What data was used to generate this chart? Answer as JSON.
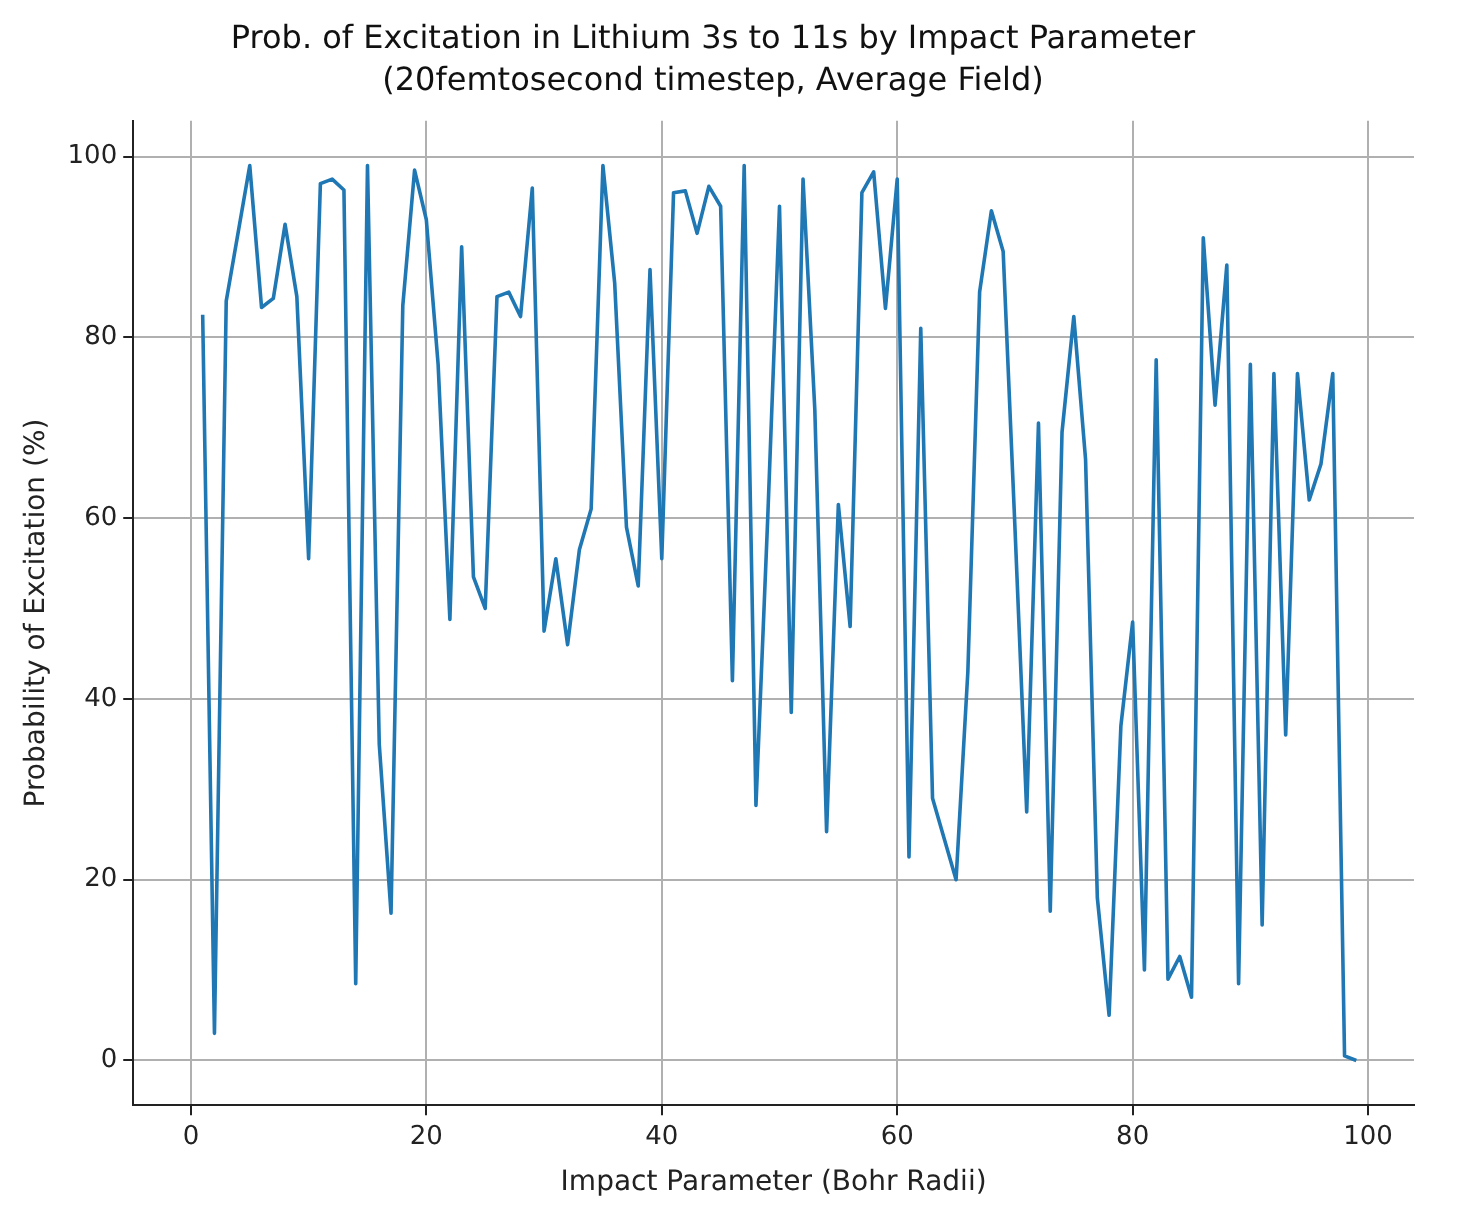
{
  "chart_data": {
    "type": "line",
    "title": "Prob. of Excitation in Lithium 3s to 11s by Impact Parameter",
    "subtitle": "(20femtosecond timestep, Average Field)",
    "xlabel": "Impact Parameter (Bohr Radii)",
    "ylabel": "Probability of Excitation (%)",
    "x": [
      1,
      2,
      3,
      4,
      5,
      6,
      7,
      8,
      9,
      10,
      11,
      12,
      13,
      14,
      15,
      16,
      17,
      18,
      19,
      20,
      21,
      22,
      23,
      24,
      25,
      26,
      27,
      28,
      29,
      30,
      31,
      32,
      33,
      34,
      35,
      36,
      37,
      38,
      39,
      40,
      41,
      42,
      43,
      44,
      45,
      46,
      47,
      48,
      49,
      50,
      51,
      52,
      53,
      54,
      55,
      56,
      57,
      58,
      59,
      60,
      61,
      62,
      63,
      64,
      65,
      66,
      67,
      68,
      69,
      70,
      71,
      72,
      73,
      74,
      75,
      76,
      77,
      78,
      79,
      80,
      81,
      82,
      83,
      84,
      85,
      86,
      87,
      88,
      89,
      90,
      91,
      92,
      93,
      94,
      95,
      96,
      97,
      98,
      99
    ],
    "series": [
      {
        "color": "#1f77b4",
        "values": [
          82.5,
          3,
          84,
          91.5,
          99,
          83.3,
          84.3,
          92.5,
          84.5,
          55.5,
          97,
          97.5,
          96.3,
          8.5,
          99,
          35,
          16.3,
          83.5,
          98.5,
          93,
          77,
          48.8,
          90,
          53.5,
          50,
          84.5,
          85,
          82.3,
          96.5,
          47.5,
          55.5,
          46,
          56.5,
          61,
          99,
          86,
          59,
          52.5,
          87.5,
          55.5,
          96,
          96.2,
          91.5,
          96.7,
          94.5,
          42,
          99,
          28.2,
          60,
          94.5,
          38.5,
          97.5,
          72,
          25.3,
          61.5,
          48,
          96,
          98.3,
          83.2,
          97.5,
          22.5,
          81,
          29,
          24.5,
          20,
          43,
          85,
          94,
          89.5,
          59,
          27.5,
          70.5,
          16.5,
          69.5,
          82.3,
          66.5,
          18,
          5,
          37,
          48.5,
          10,
          77.5,
          9,
          11.5,
          7,
          91,
          72.5,
          88,
          8.5,
          77,
          15,
          76,
          36,
          76,
          62,
          66,
          76,
          0.5,
          0
        ]
      }
    ],
    "xlim": [
      -4.9,
      103.9
    ],
    "ylim": [
      -4.95,
      103.95
    ],
    "xticks": [
      0,
      20,
      40,
      60,
      80,
      100
    ],
    "yticks": [
      0,
      20,
      40,
      60,
      80,
      100
    ],
    "grid": true,
    "legend": false,
    "marker": "none",
    "line_style": "solid"
  }
}
